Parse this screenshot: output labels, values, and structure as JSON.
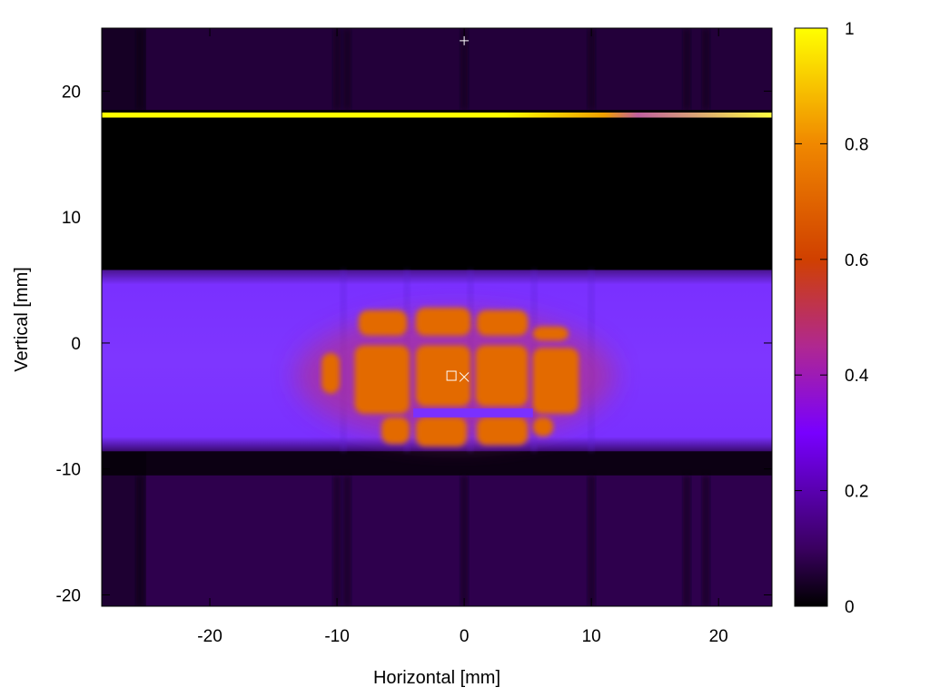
{
  "chart_data": {
    "type": "heatmap",
    "title": "",
    "xlabel": "Horizontal [mm]",
    "ylabel": "Vertical [mm]",
    "xlim": [
      -28.5,
      24.2
    ],
    "ylim": [
      -20.9,
      25.0
    ],
    "x_ticks": [
      -20,
      -10,
      0,
      10,
      20
    ],
    "y_ticks": [
      -20,
      -10,
      0,
      10,
      20
    ],
    "colorbar": {
      "range": [
        0,
        1
      ],
      "ticks": [
        0,
        0.2,
        0.4,
        0.6,
        0.8,
        1
      ],
      "tick_labels": [
        "0",
        "0.2",
        "0.4",
        "0.6",
        "0.8",
        "1"
      ],
      "colormap": [
        "#000000",
        "#3a0060",
        "#7800ff",
        "#b02890",
        "#d04000",
        "#f08800",
        "#ffff00"
      ]
    },
    "regions": [
      {
        "name": "background-top",
        "x": [
          -28.5,
          24.2
        ],
        "y": [
          18.5,
          25.0
        ],
        "value": 0.06
      },
      {
        "name": "bright-stripe",
        "x": [
          -28.5,
          24.2
        ],
        "y": [
          17.9,
          18.3
        ],
        "value": 1.0
      },
      {
        "name": "dark-band",
        "x": [
          -28.5,
          24.2
        ],
        "y": [
          5.8,
          17.9
        ],
        "value": 0.0
      },
      {
        "name": "beam-band",
        "x": [
          -28.5,
          24.2
        ],
        "y": [
          -8.6,
          5.8
        ],
        "value": 0.3
      },
      {
        "name": "core",
        "x": [
          -9.5,
          9.5
        ],
        "y": [
          -8.0,
          2.5
        ],
        "value": 0.72
      },
      {
        "name": "dark-gap",
        "x": [
          -28.5,
          24.2
        ],
        "y": [
          -10.5,
          -8.6
        ],
        "value": 0.02
      },
      {
        "name": "background-bottom",
        "x": [
          -28.5,
          24.2
        ],
        "y": [
          -20.9,
          -10.5
        ],
        "value": 0.08
      }
    ],
    "markers": [
      {
        "symbol": "plus",
        "x": 0.0,
        "y": 24.0
      },
      {
        "symbol": "square",
        "x": -1.0,
        "y": -2.6
      },
      {
        "symbol": "cross",
        "x": 0.0,
        "y": -2.7
      }
    ]
  }
}
